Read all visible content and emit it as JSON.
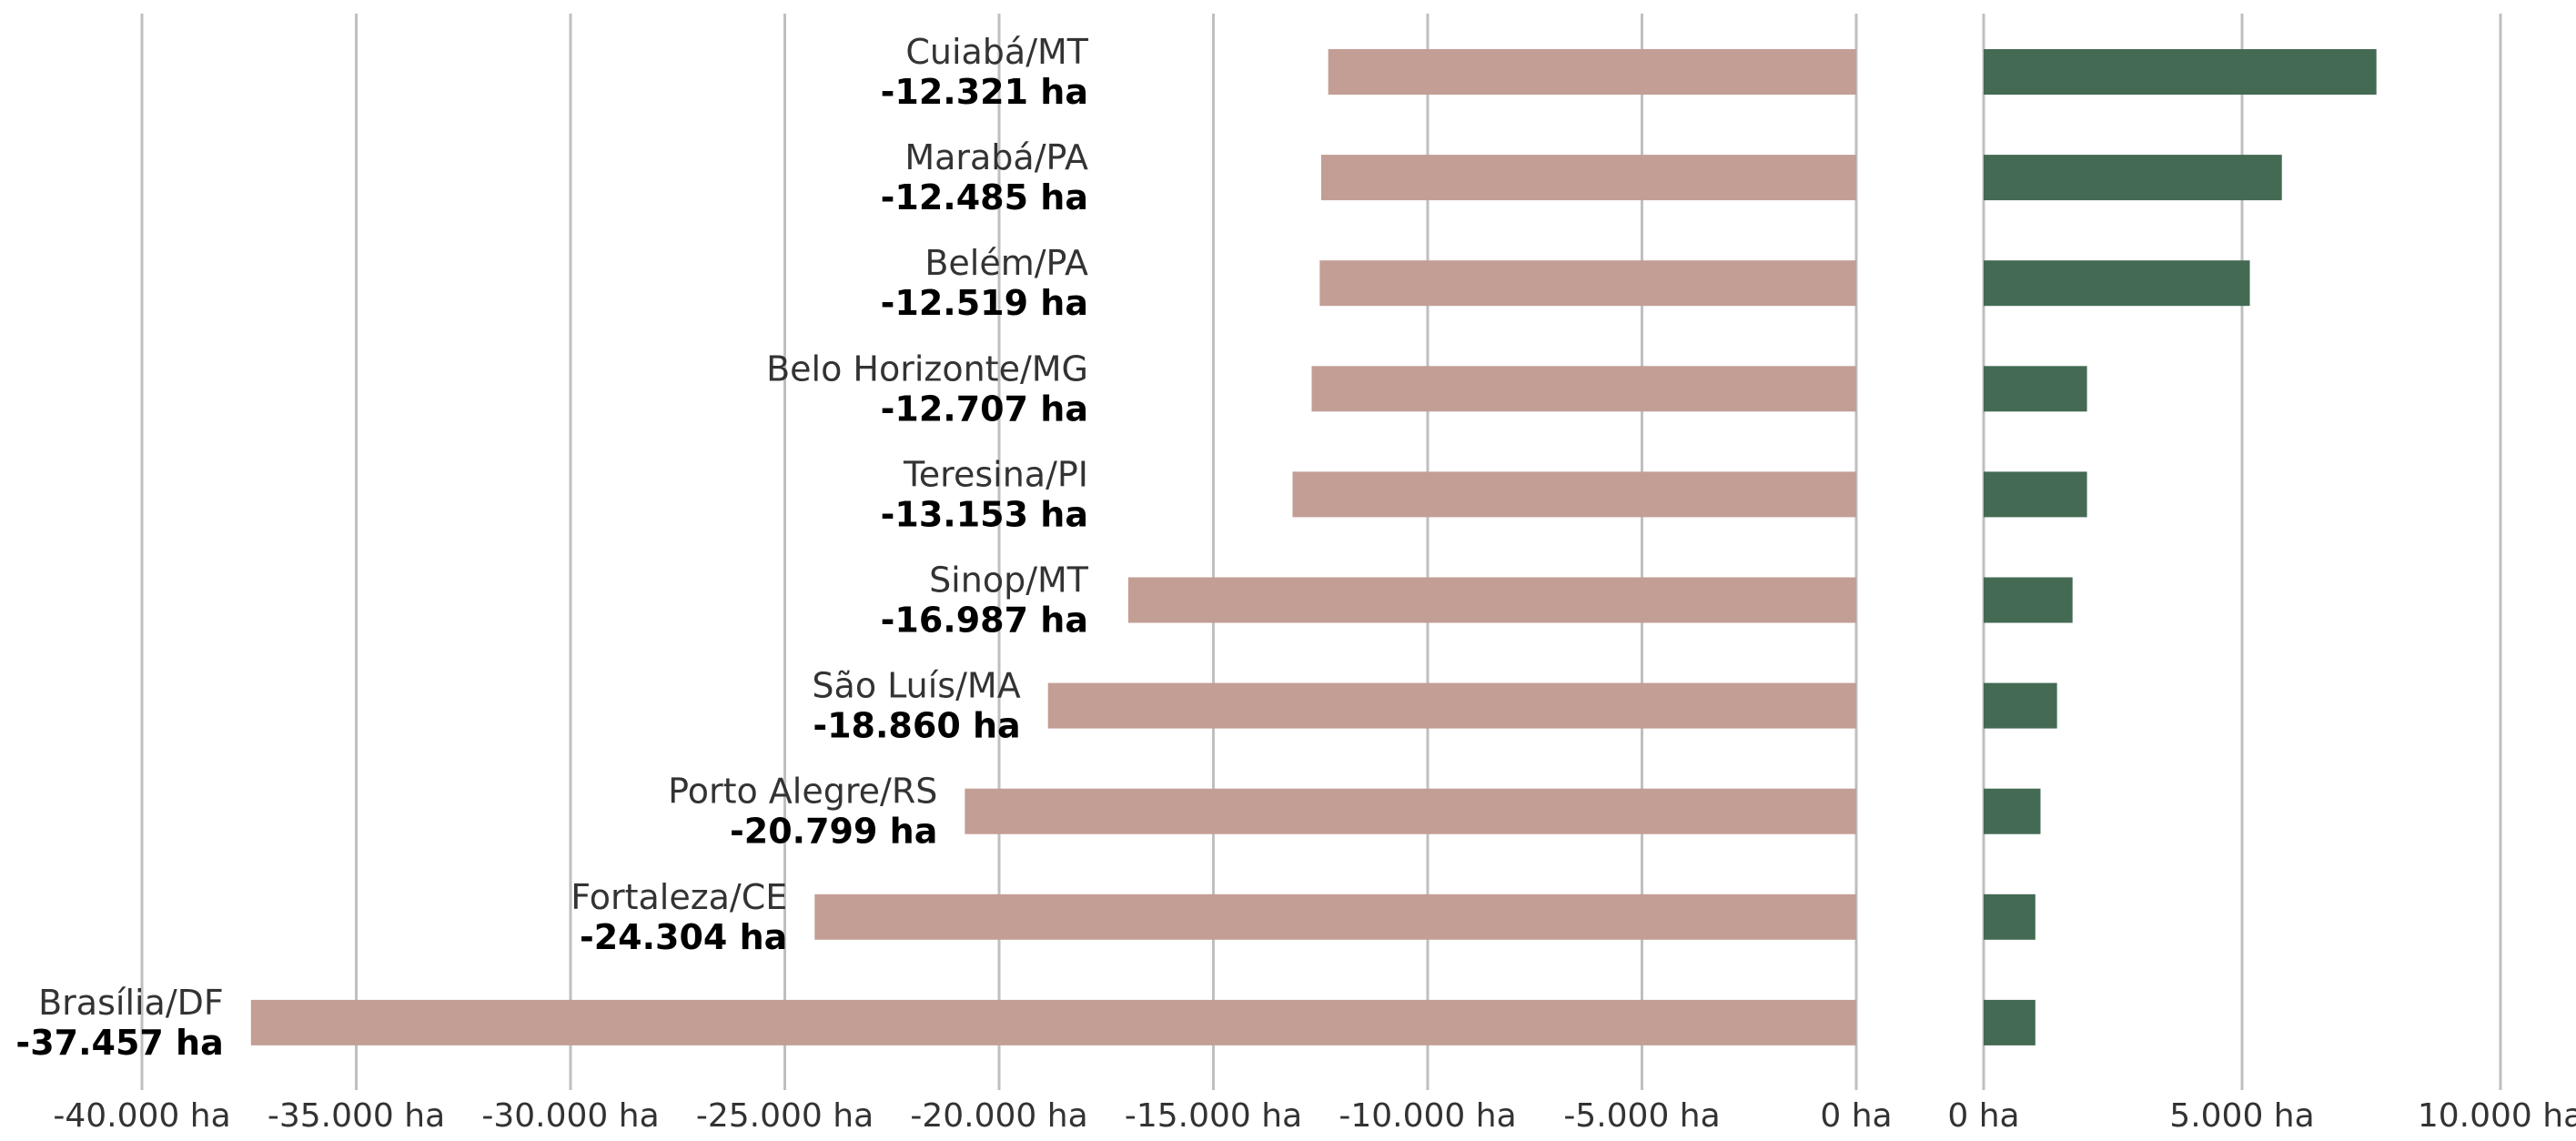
{
  "chart_data": [
    {
      "type": "bar",
      "orientation": "horizontal",
      "title": "",
      "xlabel": "",
      "ylabel": "",
      "xlim": [
        -40000,
        0
      ],
      "grid": true,
      "legend": "none",
      "color": "#c39e95",
      "categories": [
        "Cuiabá/MT",
        "Marabá/PA",
        "Belém/PA",
        "Belo Horizonte/MG",
        "Teresina/PI",
        "Sinop/MT",
        "São Luís/MA",
        "Porto Alegre/RS",
        "Fortaleza/CE",
        "Brasília/DF"
      ],
      "values": [
        -12321,
        -12485,
        -12519,
        -12707,
        -13153,
        -16987,
        -18860,
        -20799,
        -24304,
        -37457
      ],
      "data_labels": [
        "-12.321 ha",
        "-12.485 ha",
        "-12.519 ha",
        "-12.707 ha",
        "-13.153 ha",
        "-16.987 ha",
        "-18.860 ha",
        "-20.799 ha",
        "-24.304 ha",
        "-37.457 ha"
      ],
      "ticks": [
        -40000,
        -35000,
        -30000,
        -25000,
        -20000,
        -15000,
        -10000,
        -5000,
        0
      ],
      "tick_labels": [
        "-40.000 ha",
        "-35.000 ha",
        "-30.000 ha",
        "-25.000 ha",
        "-20.000 ha",
        "-15.000 ha",
        "-10.000 ha",
        "-5.000 ha",
        "0 ha"
      ]
    },
    {
      "type": "bar",
      "orientation": "horizontal",
      "title": "",
      "xlabel": "",
      "ylabel": "",
      "xlim": [
        0,
        10000
      ],
      "grid": true,
      "legend": "none",
      "color": "#446a53",
      "values": [
        7600,
        5770,
        5150,
        2000,
        2000,
        1720,
        1420,
        1100,
        1000,
        1000
      ],
      "ticks": [
        0,
        5000,
        10000
      ],
      "tick_labels": [
        "0 ha",
        "5.000 ha",
        "10.000 ha"
      ]
    }
  ]
}
